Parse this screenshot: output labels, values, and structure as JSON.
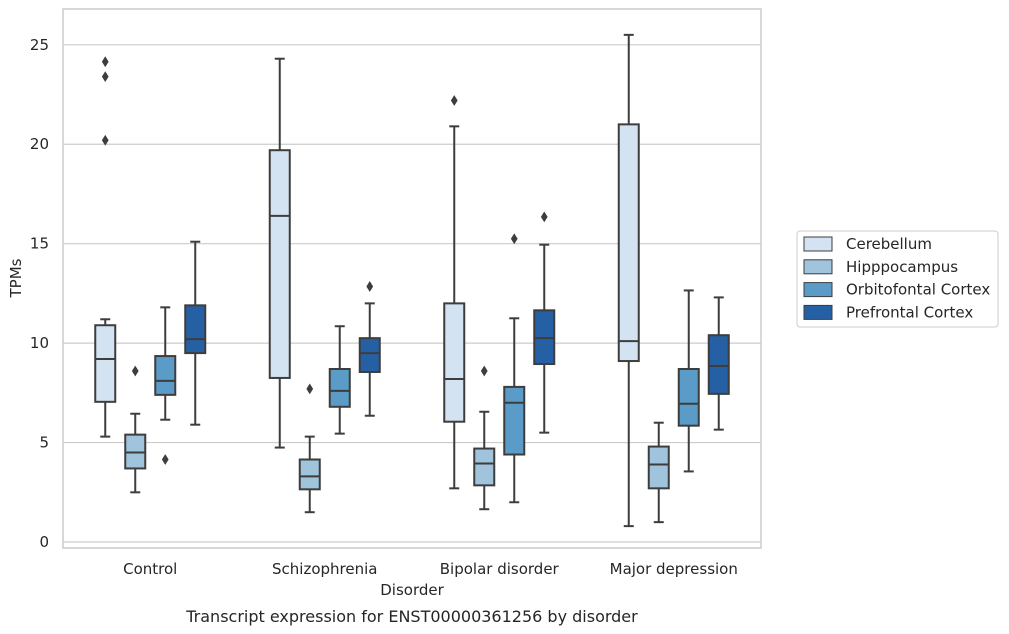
{
  "caption": "Transcript expression for ENST00000361256 by disorder",
  "chart_data": {
    "type": "box",
    "xlabel": "Disorder",
    "ylabel": "TPMs",
    "ylim": [
      -0.3,
      26.8
    ],
    "yticks": [
      0,
      5,
      10,
      15,
      20,
      25
    ],
    "grid": "horizontal",
    "legend_position": "right",
    "categories": [
      "Control",
      "Schizophrenia",
      "Bipolar disorder",
      "Major depression"
    ],
    "series": [
      {
        "name": "Cerebellum",
        "color": "#d4e3f2",
        "boxes": [
          {
            "whisker_low": 5.3,
            "q1": 7.05,
            "median": 9.2,
            "q3": 10.9,
            "whisker_high": 11.2,
            "outliers": [
              20.2,
              23.4,
              24.15
            ]
          },
          {
            "whisker_low": 4.75,
            "q1": 8.25,
            "median": 16.4,
            "q3": 19.7,
            "whisker_high": 24.3,
            "outliers": []
          },
          {
            "whisker_low": 2.7,
            "q1": 6.05,
            "median": 8.2,
            "q3": 12.0,
            "whisker_high": 20.9,
            "outliers": [
              22.2
            ]
          },
          {
            "whisker_low": 0.8,
            "q1": 9.1,
            "median": 10.1,
            "q3": 21.0,
            "whisker_high": 25.5,
            "outliers": []
          }
        ]
      },
      {
        "name": "Hipppocampus",
        "color": "#9fc4dc",
        "boxes": [
          {
            "whisker_low": 2.5,
            "q1": 3.7,
            "median": 4.5,
            "q3": 5.4,
            "whisker_high": 6.45,
            "outliers": [
              8.6
            ]
          },
          {
            "whisker_low": 1.5,
            "q1": 2.65,
            "median": 3.3,
            "q3": 4.15,
            "whisker_high": 5.3,
            "outliers": [
              7.7
            ]
          },
          {
            "whisker_low": 1.65,
            "q1": 2.85,
            "median": 3.95,
            "q3": 4.7,
            "whisker_high": 6.55,
            "outliers": [
              8.6
            ]
          },
          {
            "whisker_low": 1.0,
            "q1": 2.7,
            "median": 3.9,
            "q3": 4.8,
            "whisker_high": 6.0,
            "outliers": []
          }
        ]
      },
      {
        "name": "Orbitofontal Cortex",
        "color": "#5a9bc7",
        "boxes": [
          {
            "whisker_low": 6.15,
            "q1": 7.4,
            "median": 8.1,
            "q3": 9.35,
            "whisker_high": 11.8,
            "outliers": [
              4.15
            ]
          },
          {
            "whisker_low": 5.45,
            "q1": 6.8,
            "median": 7.6,
            "q3": 8.7,
            "whisker_high": 10.85,
            "outliers": []
          },
          {
            "whisker_low": 2.0,
            "q1": 4.4,
            "median": 7.0,
            "q3": 7.8,
            "whisker_high": 11.25,
            "outliers": [
              15.25
            ]
          },
          {
            "whisker_low": 3.55,
            "q1": 5.85,
            "median": 6.95,
            "q3": 8.7,
            "whisker_high": 12.65,
            "outliers": []
          }
        ]
      },
      {
        "name": "Prefrontal Cortex",
        "color": "#2660a4",
        "boxes": [
          {
            "whisker_low": 5.9,
            "q1": 9.5,
            "median": 10.2,
            "q3": 11.9,
            "whisker_high": 15.1,
            "outliers": []
          },
          {
            "whisker_low": 6.35,
            "q1": 8.55,
            "median": 9.5,
            "q3": 10.25,
            "whisker_high": 12.0,
            "outliers": [
              12.85
            ]
          },
          {
            "whisker_low": 5.5,
            "q1": 8.95,
            "median": 10.25,
            "q3": 11.65,
            "whisker_high": 14.95,
            "outliers": [
              16.35
            ]
          },
          {
            "whisker_low": 5.65,
            "q1": 7.45,
            "median": 8.85,
            "q3": 10.4,
            "whisker_high": 12.3,
            "outliers": []
          }
        ]
      }
    ]
  }
}
